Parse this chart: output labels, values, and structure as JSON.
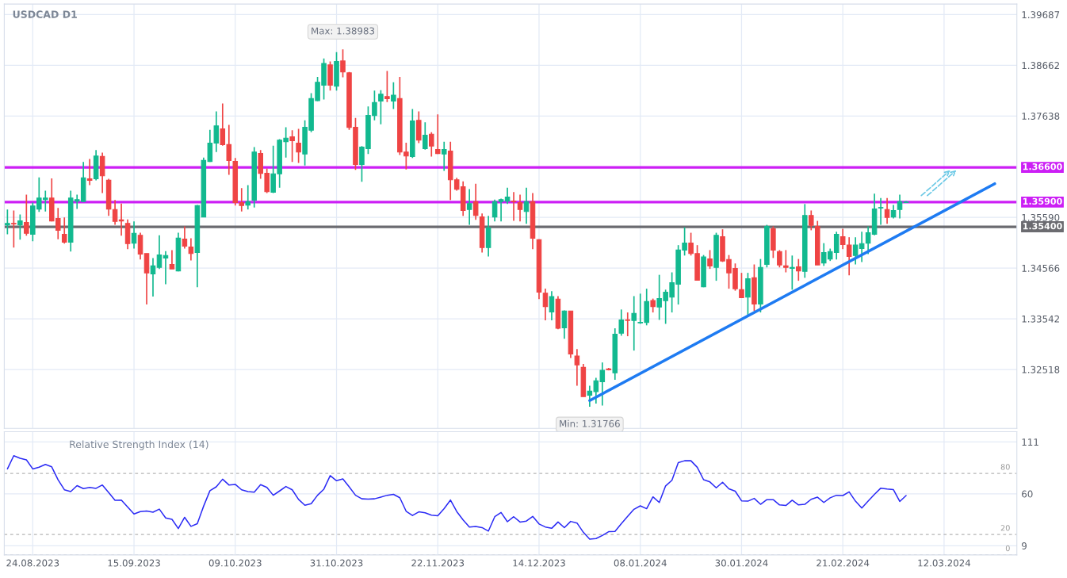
{
  "chart_data": [
    {
      "type": "candlestick",
      "title": "USDCAD D1",
      "categories": [
        null,
        null,
        null,
        null,
        "24.08.2023",
        null,
        null,
        null,
        null,
        null,
        null,
        null,
        null,
        null,
        null,
        null,
        null,
        null,
        null,
        null,
        "15.09.2023",
        null,
        null,
        null,
        null,
        null,
        null,
        null,
        null,
        null,
        null,
        null,
        null,
        null,
        null,
        null,
        "09.10.2023",
        null,
        null,
        null,
        null,
        null,
        null,
        null,
        null,
        null,
        null,
        null,
        null,
        null,
        null,
        null,
        "31.10.2023",
        null,
        null,
        null,
        null,
        null,
        null,
        null,
        null,
        null,
        null,
        null,
        null,
        null,
        null,
        null,
        "22.11.2023",
        null,
        null,
        null,
        null,
        null,
        null,
        null,
        null,
        null,
        null,
        null,
        null,
        null,
        null,
        null,
        "14.12.2023",
        null,
        null,
        null,
        null,
        null,
        null,
        null,
        null,
        null,
        null,
        null,
        null,
        null,
        null,
        null,
        "08.01.2024",
        null,
        null,
        null,
        null,
        null,
        null,
        null,
        null,
        null,
        null,
        null,
        null,
        null,
        null,
        null,
        "30.01.2024",
        null,
        null,
        null,
        null,
        null,
        null,
        null,
        null,
        null,
        null,
        null,
        null,
        null,
        null,
        null,
        "21.02.2024",
        null,
        null,
        null,
        null,
        null,
        null,
        null,
        null,
        null,
        null,
        null,
        null,
        null,
        null,
        null,
        "12.03.2024",
        null,
        null,
        null,
        null,
        null,
        null,
        null,
        null,
        null,
        null,
        null
      ],
      "ohlc": [
        [
          1.3544,
          1.3575,
          1.3525,
          1.3547
        ],
        [
          1.3547,
          1.3573,
          1.3498,
          1.3546
        ],
        [
          1.3544,
          1.3565,
          1.3514,
          1.3552
        ],
        [
          1.3549,
          1.3605,
          1.3522,
          1.3527
        ],
        [
          1.3525,
          1.3589,
          1.3511,
          1.3582
        ],
        [
          1.3576,
          1.364,
          1.357,
          1.3598
        ],
        [
          1.3595,
          1.3613,
          1.3571,
          1.3598
        ],
        [
          1.3598,
          1.3638,
          1.3551,
          1.3552
        ],
        [
          1.3557,
          1.3578,
          1.3515,
          1.3533
        ],
        [
          1.3525,
          1.3559,
          1.3506,
          1.3509
        ],
        [
          1.3509,
          1.3613,
          1.349,
          1.3598
        ],
        [
          1.3592,
          1.3605,
          1.3576,
          1.3595
        ],
        [
          1.3591,
          1.3671,
          1.3591,
          1.3639
        ],
        [
          1.3637,
          1.3677,
          1.3624,
          1.3634
        ],
        [
          1.3637,
          1.3695,
          1.3634,
          1.3683
        ],
        [
          1.3682,
          1.369,
          1.3608,
          1.3643
        ],
        [
          1.3634,
          1.3637,
          1.3562,
          1.3576
        ],
        [
          1.3575,
          1.3594,
          1.3544,
          1.3551
        ],
        [
          1.3554,
          1.3587,
          1.3522,
          1.3552
        ],
        [
          1.3547,
          1.3555,
          1.3495,
          1.3506
        ],
        [
          1.3507,
          1.3551,
          1.3496,
          1.3527
        ],
        [
          1.3523,
          1.3528,
          1.3474,
          1.3485
        ],
        [
          1.3486,
          1.3486,
          1.3383,
          1.3447
        ],
        [
          1.3445,
          1.3477,
          1.3399,
          1.3461
        ],
        [
          1.3458,
          1.3523,
          1.3455,
          1.3483
        ],
        [
          1.3477,
          1.3491,
          1.3424,
          1.3482
        ],
        [
          1.3464,
          1.3493,
          1.3455,
          1.3455
        ],
        [
          1.3451,
          1.3528,
          1.345,
          1.3517
        ],
        [
          1.3515,
          1.3541,
          1.3496,
          1.3501
        ],
        [
          1.3499,
          1.3517,
          1.3472,
          1.3486
        ],
        [
          1.3488,
          1.3584,
          1.3418,
          1.3583
        ],
        [
          1.356,
          1.368,
          1.356,
          1.3674
        ],
        [
          1.3672,
          1.3736,
          1.3671,
          1.3709
        ],
        [
          1.3709,
          1.3773,
          1.3691,
          1.3744
        ],
        [
          1.3738,
          1.3789,
          1.3704,
          1.3706
        ],
        [
          1.3706,
          1.3746,
          1.3645,
          1.3674
        ],
        [
          1.3672,
          1.3679,
          1.3583,
          1.3589
        ],
        [
          1.3589,
          1.3618,
          1.3571,
          1.3583
        ],
        [
          1.3584,
          1.3624,
          1.3575,
          1.3591
        ],
        [
          1.3594,
          1.3701,
          1.3579,
          1.3691
        ],
        [
          1.3688,
          1.3695,
          1.3637,
          1.3648
        ],
        [
          1.3648,
          1.3658,
          1.3608,
          1.3611
        ],
        [
          1.361,
          1.3704,
          1.3608,
          1.3647
        ],
        [
          1.3647,
          1.3717,
          1.3619,
          1.3715
        ],
        [
          1.3712,
          1.3741,
          1.368,
          1.3719
        ],
        [
          1.3722,
          1.3735,
          1.3671,
          1.3714
        ],
        [
          1.3709,
          1.3738,
          1.3669,
          1.3691
        ],
        [
          1.3687,
          1.3755,
          1.3664,
          1.3741
        ],
        [
          1.3735,
          1.381,
          1.3731,
          1.3799
        ],
        [
          1.3795,
          1.3843,
          1.3794,
          1.3832
        ],
        [
          1.3826,
          1.388,
          1.3797,
          1.387
        ],
        [
          1.3867,
          1.3874,
          1.3815,
          1.3826
        ],
        [
          1.3824,
          1.3893,
          1.3815,
          1.3874
        ],
        [
          1.3875,
          1.38983,
          1.3842,
          1.3853
        ],
        [
          1.3851,
          1.3853,
          1.3736,
          1.3741
        ],
        [
          1.3741,
          1.376,
          1.3655,
          1.3666
        ],
        [
          1.3666,
          1.3703,
          1.3631,
          1.3701
        ],
        [
          1.3698,
          1.3783,
          1.3687,
          1.3765
        ],
        [
          1.3765,
          1.3815,
          1.3755,
          1.3791
        ],
        [
          1.3794,
          1.3816,
          1.3747,
          1.3808
        ],
        [
          1.3803,
          1.3855,
          1.3792,
          1.3799
        ],
        [
          1.3794,
          1.3832,
          1.3778,
          1.3806
        ],
        [
          1.3799,
          1.3843,
          1.3685,
          1.3691
        ],
        [
          1.3691,
          1.371,
          1.3656,
          1.3683
        ],
        [
          1.3682,
          1.3778,
          1.3679,
          1.3754
        ],
        [
          1.3755,
          1.3773,
          1.3709,
          1.3715
        ],
        [
          1.3698,
          1.3751,
          1.3696,
          1.3725
        ],
        [
          1.3727,
          1.3731,
          1.3682,
          1.3703
        ],
        [
          1.3696,
          1.3767,
          1.3687,
          1.3688
        ],
        [
          1.3687,
          1.3712,
          1.3653,
          1.3696
        ],
        [
          1.3693,
          1.3712,
          1.3594,
          1.3635
        ],
        [
          1.3635,
          1.3639,
          1.3613,
          1.3616
        ],
        [
          1.3621,
          1.3632,
          1.3562,
          1.3573
        ],
        [
          1.3575,
          1.3616,
          1.3544,
          1.3587
        ],
        [
          1.3591,
          1.3627,
          1.3554,
          1.3563
        ],
        [
          1.356,
          1.3567,
          1.3488,
          1.3498
        ],
        [
          1.3498,
          1.3562,
          1.348,
          1.3538
        ],
        [
          1.356,
          1.3595,
          1.3551,
          1.3591
        ],
        [
          1.3591,
          1.3597,
          1.3551,
          1.3595
        ],
        [
          1.3592,
          1.3619,
          1.3586,
          1.36
        ],
        [
          1.3592,
          1.361,
          1.3552,
          1.3591
        ],
        [
          1.3589,
          1.3605,
          1.3551,
          1.3575
        ],
        [
          1.3571,
          1.3619,
          1.3546,
          1.3591
        ],
        [
          1.3591,
          1.3608,
          1.3495,
          1.3517
        ],
        [
          1.3514,
          1.3515,
          1.3394,
          1.3408
        ],
        [
          1.3406,
          1.3415,
          1.3351,
          1.3379
        ],
        [
          1.3368,
          1.341,
          1.3351,
          1.3399
        ],
        [
          1.3394,
          1.34,
          1.3333,
          1.3335
        ],
        [
          1.3336,
          1.3371,
          1.3314,
          1.337
        ],
        [
          1.337,
          1.337,
          1.3275,
          1.3283
        ],
        [
          1.3279,
          1.3293,
          1.3219,
          1.3261
        ],
        [
          1.3256,
          1.3263,
          1.3197,
          1.3197
        ],
        [
          1.32,
          1.3219,
          1.31766,
          1.3208
        ],
        [
          1.3207,
          1.3235,
          1.3183,
          1.3229
        ],
        [
          1.3227,
          1.3266,
          1.3179,
          1.325
        ],
        [
          1.3253,
          1.3255,
          1.325,
          1.3251
        ],
        [
          1.3245,
          1.3335,
          1.3231,
          1.3323
        ],
        [
          1.3325,
          1.3373,
          1.332,
          1.3352
        ],
        [
          1.3352,
          1.3367,
          1.3319,
          1.3351
        ],
        [
          1.3351,
          1.34,
          1.329,
          1.3365
        ],
        [
          1.3346,
          1.3405,
          1.3344,
          1.3347
        ],
        [
          1.3347,
          1.3415,
          1.3341,
          1.3389
        ],
        [
          1.3391,
          1.3395,
          1.3367,
          1.3379
        ],
        [
          1.3378,
          1.3443,
          1.3352,
          1.3395
        ],
        [
          1.3391,
          1.3413,
          1.3344,
          1.3408
        ],
        [
          1.3398,
          1.3448,
          1.3367,
          1.3427
        ],
        [
          1.3424,
          1.3503,
          1.3383,
          1.3493
        ],
        [
          1.3493,
          1.3539,
          1.3482,
          1.3507
        ],
        [
          1.3507,
          1.3528,
          1.3482,
          1.3486
        ],
        [
          1.3486,
          1.3503,
          1.3432,
          1.3432
        ],
        [
          1.3419,
          1.3483,
          1.3418,
          1.3479
        ],
        [
          1.3475,
          1.3493,
          1.3455,
          1.3461
        ],
        [
          1.3458,
          1.3528,
          1.3431,
          1.3523
        ],
        [
          1.352,
          1.3535,
          1.3469,
          1.3471
        ],
        [
          1.3474,
          1.3483,
          1.3415,
          1.3447
        ],
        [
          1.3456,
          1.3466,
          1.3411,
          1.3415
        ],
        [
          1.3413,
          1.3447,
          1.3397,
          1.3397
        ],
        [
          1.3398,
          1.3447,
          1.3362,
          1.3435
        ],
        [
          1.3437,
          1.3464,
          1.337,
          1.3384
        ],
        [
          1.3384,
          1.3475,
          1.3367,
          1.3458
        ],
        [
          1.3464,
          1.3544,
          1.3458,
          1.3541
        ],
        [
          1.3536,
          1.3541,
          1.3477,
          1.3493
        ],
        [
          1.349,
          1.3493,
          1.3458,
          1.3463
        ],
        [
          1.3461,
          1.3493,
          1.3448,
          1.3458
        ],
        [
          1.3456,
          1.3482,
          1.3413,
          1.3458
        ],
        [
          1.3459,
          1.3475,
          1.3431,
          1.3451
        ],
        [
          1.345,
          1.3586,
          1.3437,
          1.3563
        ],
        [
          1.3563,
          1.3573,
          1.3533,
          1.3543
        ],
        [
          1.3541,
          1.3552,
          1.3463,
          1.3463
        ],
        [
          1.3467,
          1.3507,
          1.3461,
          1.3488
        ],
        [
          1.3475,
          1.3496,
          1.3471,
          1.349
        ],
        [
          1.3488,
          1.353,
          1.3474,
          1.3525
        ],
        [
          1.352,
          1.3536,
          1.3495,
          1.3504
        ],
        [
          1.3503,
          1.3519,
          1.3442,
          1.348
        ],
        [
          1.3482,
          1.3519,
          1.3464,
          1.3503
        ],
        [
          1.3496,
          1.353,
          1.3469,
          1.3506
        ],
        [
          1.3507,
          1.3541,
          1.3485,
          1.3528
        ],
        [
          1.3525,
          1.3607,
          1.3523,
          1.3576
        ],
        [
          1.3578,
          1.3598,
          1.3544,
          1.3579
        ],
        [
          1.3575,
          1.3598,
          1.3546,
          1.3559
        ],
        [
          1.356,
          1.3584,
          1.3557,
          1.3573
        ],
        [
          1.3575,
          1.3605,
          1.3557,
          1.3591
        ],
        [
          1.3589,
          1.3592,
          1.3589,
          1.359
        ],
        null,
        null,
        null,
        null,
        null,
        null,
        null,
        null,
        null,
        null,
        null,
        null,
        null,
        null,
        null,
        null,
        null
      ],
      "series": [
        {
          "type": "line",
          "color": "#1e7bf2",
          "values": [
            null,
            null,
            null,
            null,
            null,
            null,
            null,
            null,
            null,
            null,
            null,
            null,
            null,
            null,
            null,
            null,
            null,
            null,
            null,
            null,
            null,
            null,
            null,
            null,
            null,
            null,
            null,
            null,
            null,
            null,
            null,
            null,
            null,
            null,
            null,
            null,
            null,
            null,
            null,
            null,
            null,
            null,
            null,
            null,
            null,
            null,
            null,
            null,
            null,
            null,
            null,
            null,
            null,
            null,
            null,
            null,
            null,
            null,
            null,
            null,
            null,
            null,
            null,
            null,
            null,
            null,
            null,
            null,
            null,
            null,
            null,
            null,
            null,
            null,
            null,
            null,
            null,
            null,
            null,
            null,
            null,
            null,
            null,
            null,
            null,
            null,
            null,
            null,
            null,
            null,
            null,
            null,
            1.3189,
            null,
            null,
            null,
            null,
            null,
            null,
            null,
            null,
            null,
            null,
            null,
            null,
            null,
            null,
            null,
            null,
            null,
            null,
            null,
            null,
            null,
            null,
            null,
            null,
            null,
            null,
            null,
            null,
            null,
            null,
            null,
            null,
            null,
            null,
            null,
            null,
            null,
            null,
            null,
            null,
            null,
            null,
            null,
            null,
            null,
            null,
            null,
            null,
            null,
            null,
            null,
            null,
            null,
            null,
            null,
            null,
            null,
            null,
            null,
            null,
            null,
            null,
            null,
            1.3627,
            null,
            null,
            null
          ]
        }
      ],
      "ylim": [
        1.3133,
        1.399
      ],
      "yticks": [
        1.32518,
        1.33542,
        1.34566,
        {
          "value": 1.3559,
          "label": "1.35590"
        },
        1.37638,
        1.38662,
        1.39687
      ],
      "ref_lines": [
        {
          "axis": "y",
          "value": 1.366,
          "label": "1.36600",
          "color": "#cc1ff5"
        },
        {
          "axis": "y",
          "value": 1.359,
          "label": "1.35900",
          "color": "#cc1ff5"
        },
        {
          "axis": "y",
          "value": 1.354,
          "label": "1.35400",
          "color": "#6b6b70"
        }
      ],
      "annotations": [
        {
          "text": "Max: 1.38983",
          "y": 1.38983
        },
        {
          "text": "Min: 1.31766",
          "y": 1.31766
        }
      ],
      "grid": true,
      "tick_labels": "y"
    },
    {
      "type": "line",
      "title": "Relative Strength Index (14)",
      "categories": [
        null,
        null,
        null,
        null,
        "24.08.2023",
        null,
        null,
        null,
        null,
        null,
        null,
        null,
        null,
        null,
        null,
        null,
        null,
        null,
        null,
        null,
        "15.09.2023",
        null,
        null,
        null,
        null,
        null,
        null,
        null,
        null,
        null,
        null,
        null,
        null,
        null,
        null,
        null,
        "09.10.2023",
        null,
        null,
        null,
        null,
        null,
        null,
        null,
        null,
        null,
        null,
        null,
        null,
        null,
        null,
        null,
        "31.10.2023",
        null,
        null,
        null,
        null,
        null,
        null,
        null,
        null,
        null,
        null,
        null,
        null,
        null,
        null,
        null,
        "22.11.2023",
        null,
        null,
        null,
        null,
        null,
        null,
        null,
        null,
        null,
        null,
        null,
        null,
        null,
        null,
        null,
        "14.12.2023",
        null,
        null,
        null,
        null,
        null,
        null,
        null,
        null,
        null,
        null,
        null,
        null,
        null,
        null,
        null,
        "08.01.2024",
        null,
        null,
        null,
        null,
        null,
        null,
        null,
        null,
        null,
        null,
        null,
        null,
        null,
        null,
        null,
        "30.01.2024",
        null,
        null,
        null,
        null,
        null,
        null,
        null,
        null,
        null,
        null,
        null,
        null,
        null,
        null,
        null,
        "21.02.2024",
        null,
        null,
        null,
        null,
        null,
        null,
        null,
        null,
        null,
        null,
        null,
        null,
        null,
        null,
        null,
        "12.03.2024",
        null,
        null,
        null,
        null,
        null,
        null,
        null,
        null,
        null,
        null,
        null
      ],
      "series": [
        {
          "color": "#2b2bf5",
          "values": [
            84.5,
            97.5,
            94.9,
            93.4,
            84.5,
            86.2,
            88.9,
            86.5,
            73.8,
            64.0,
            62.2,
            68.1,
            65.1,
            66.3,
            65.4,
            68.7,
            61.3,
            53.6,
            53.9,
            47.0,
            40.2,
            42.6,
            43.2,
            42.0,
            45.0,
            36.3,
            34.9,
            25.9,
            36.9,
            28.0,
            30.7,
            47.9,
            63.1,
            66.9,
            74.4,
            68.7,
            69.3,
            64.0,
            62.2,
            61.6,
            69.0,
            66.3,
            58.6,
            62.8,
            67.2,
            64.0,
            54.5,
            48.8,
            50.3,
            58.6,
            64.6,
            77.9,
            72.9,
            74.7,
            66.9,
            58.6,
            55.1,
            54.8,
            55.1,
            56.8,
            58.6,
            59.5,
            56.2,
            42.9,
            38.7,
            42.3,
            41.4,
            39.0,
            38.4,
            45.5,
            53.9,
            42.6,
            34.4,
            27.4,
            28.0,
            26.8,
            23.4,
            37.5,
            41.7,
            32.6,
            37.5,
            32.3,
            33.2,
            37.8,
            30.4,
            27.4,
            26.1,
            32.3,
            26.8,
            32.9,
            31.3,
            22.2,
            15.4,
            16.0,
            19.1,
            22.8,
            23.1,
            30.7,
            37.8,
            44.8,
            48.2,
            45.4,
            57.0,
            51.5,
            67.8,
            73.3,
            90.7,
            92.5,
            92.5,
            86.1,
            73.9,
            71.7,
            65.9,
            71.4,
            65.0,
            62.6,
            53.1,
            52.8,
            55.5,
            49.7,
            54.3,
            54.3,
            49.1,
            48.5,
            53.7,
            49.1,
            49.7,
            54.6,
            56.7,
            51.5,
            56.1,
            58.6,
            58.3,
            61.9,
            52.8,
            46.0,
            52.8,
            59.5,
            65.6,
            64.7,
            64.1,
            52.5,
            58.3,
            null,
            null,
            null,
            null,
            null,
            null,
            null,
            null,
            null,
            null,
            null,
            null,
            null,
            null,
            null,
            null,
            null
          ]
        }
      ],
      "ylim": [
        0,
        121
      ],
      "yticks": [
        9,
        60,
        111
      ],
      "ref_lines": [
        {
          "axis": "y",
          "value": 80,
          "label": "80",
          "color": "#b5b5b5",
          "line_style": "dashed"
        },
        {
          "axis": "y",
          "value": 20,
          "label": "20",
          "color": "#b5b5b5",
          "line_style": "dashed"
        },
        {
          "axis": "y",
          "value": 0,
          "label": "0",
          "color": "#b5b5b5",
          "line_style": "dashed"
        }
      ],
      "grid": true
    }
  ]
}
